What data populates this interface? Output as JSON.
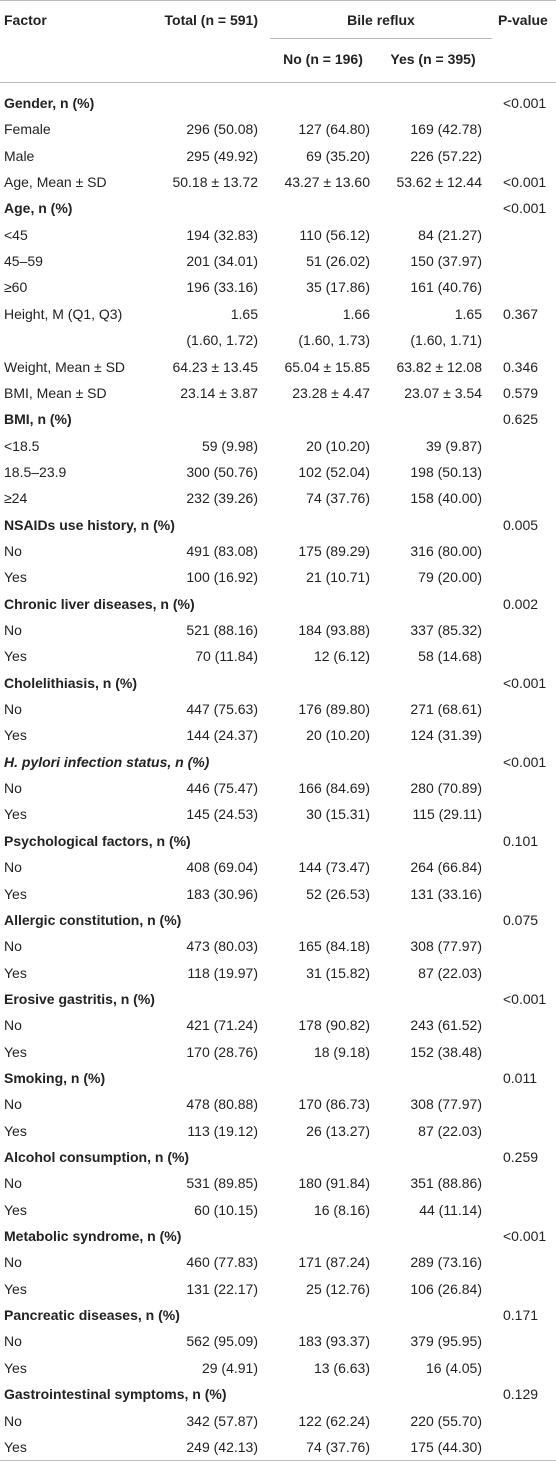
{
  "header": {
    "factor": "Factor",
    "total": "Total (n = 591)",
    "bile_reflux": "Bile reflux",
    "no": "No (n = 196)",
    "yes": "Yes (n = 395)",
    "p_value": "P-value"
  },
  "table": {
    "rows": [
      {
        "heading": true,
        "cells": [
          "Gender, n (%)",
          null,
          null,
          null,
          "<0.001"
        ]
      },
      {
        "heading": false,
        "cells": [
          "Female",
          "296 (50.08)",
          "127 (64.80)",
          "169 (42.78)",
          null
        ]
      },
      {
        "heading": false,
        "cells": [
          "Male",
          "295 (49.92)",
          "69 (35.20)",
          "226 (57.22)",
          null
        ]
      },
      {
        "heading": false,
        "cells": [
          "Age, Mean ± SD",
          "50.18 ± 13.72",
          "43.27 ± 13.60",
          "53.62 ± 12.44",
          "<0.001"
        ]
      },
      {
        "heading": true,
        "cells": [
          "Age, n (%)",
          null,
          null,
          null,
          "<0.001"
        ]
      },
      {
        "heading": false,
        "cells": [
          "<45",
          "194 (32.83)",
          "110 (56.12)",
          "84 (21.27)",
          null
        ]
      },
      {
        "heading": false,
        "cells": [
          "45–59",
          "201 (34.01)",
          "51 (26.02)",
          "150 (37.97)",
          null
        ]
      },
      {
        "heading": false,
        "cells": [
          "≥60",
          "196 (33.16)",
          "35 (17.86)",
          "161 (40.76)",
          null
        ]
      },
      {
        "heading": false,
        "cells": [
          "Height, M (Q1, Q3)",
          "1.65",
          "1.66",
          "1.65",
          "0.367"
        ]
      },
      {
        "heading": false,
        "cells": [
          null,
          "(1.60, 1.72)",
          "(1.60, 1.73)",
          "(1.60, 1.71)",
          null
        ]
      },
      {
        "heading": false,
        "cells": [
          "Weight, Mean ± SD",
          "64.23 ± 13.45",
          "65.04 ± 15.85",
          "63.82 ± 12.08",
          "0.346"
        ]
      },
      {
        "heading": false,
        "cells": [
          "BMI, Mean ± SD",
          "23.14 ± 3.87",
          "23.28 ± 4.47",
          "23.07 ± 3.54",
          "0.579"
        ]
      },
      {
        "heading": true,
        "cells": [
          "BMI, n (%)",
          null,
          null,
          null,
          "0.625"
        ]
      },
      {
        "heading": false,
        "cells": [
          "<18.5",
          "59 (9.98)",
          "20 (10.20)",
          "39 (9.87)",
          null
        ]
      },
      {
        "heading": false,
        "cells": [
          "18.5–23.9",
          "300 (50.76)",
          "102 (52.04)",
          "198 (50.13)",
          null
        ]
      },
      {
        "heading": false,
        "cells": [
          "≥24",
          "232 (39.26)",
          "74 (37.76)",
          "158 (40.00)",
          null
        ]
      },
      {
        "heading": true,
        "cells": [
          "NSAIDs use history, n (%)",
          null,
          null,
          null,
          "0.005"
        ]
      },
      {
        "heading": false,
        "cells": [
          "No",
          "491 (83.08)",
          "175 (89.29)",
          "316 (80.00)",
          null
        ]
      },
      {
        "heading": false,
        "cells": [
          "Yes",
          "100 (16.92)",
          "21 (10.71)",
          "79 (20.00)",
          null
        ]
      },
      {
        "heading": true,
        "cells": [
          "Chronic liver diseases, n (%)",
          null,
          null,
          null,
          "0.002"
        ]
      },
      {
        "heading": false,
        "cells": [
          "No",
          "521 (88.16)",
          "184 (93.88)",
          "337 (85.32)",
          null
        ]
      },
      {
        "heading": false,
        "cells": [
          "Yes",
          "70 (11.84)",
          "12 (6.12)",
          "58 (14.68)",
          null
        ]
      },
      {
        "heading": true,
        "cells": [
          "Cholelithiasis, n (%)",
          null,
          null,
          null,
          "<0.001"
        ]
      },
      {
        "heading": false,
        "cells": [
          "No",
          "447 (75.63)",
          "176 (89.80)",
          "271 (68.61)",
          null
        ]
      },
      {
        "heading": false,
        "cells": [
          "Yes",
          "144 (24.37)",
          "20 (10.20)",
          "124 (31.39)",
          null
        ]
      },
      {
        "heading": true,
        "cells": [
          "H. pylori infection status, n (%)",
          null,
          null,
          null,
          "<0.001"
        ]
      },
      {
        "heading": false,
        "cells": [
          "No",
          "446 (75.47)",
          "166 (84.69)",
          "280 (70.89)",
          null
        ]
      },
      {
        "heading": false,
        "cells": [
          "Yes",
          "145 (24.53)",
          "30 (15.31)",
          "115 (29.11)",
          null
        ]
      },
      {
        "heading": true,
        "cells": [
          "Psychological factors, n (%)",
          null,
          null,
          null,
          "0.101"
        ]
      },
      {
        "heading": false,
        "cells": [
          "No",
          "408 (69.04)",
          "144 (73.47)",
          "264 (66.84)",
          null
        ]
      },
      {
        "heading": false,
        "cells": [
          "Yes",
          "183 (30.96)",
          "52 (26.53)",
          "131 (33.16)",
          null
        ]
      },
      {
        "heading": true,
        "cells": [
          "Allergic constitution, n (%)",
          null,
          null,
          null,
          "0.075"
        ]
      },
      {
        "heading": false,
        "cells": [
          "No",
          "473 (80.03)",
          "165 (84.18)",
          "308 (77.97)",
          null
        ]
      },
      {
        "heading": false,
        "cells": [
          "Yes",
          "118 (19.97)",
          "31 (15.82)",
          "87 (22.03)",
          null
        ]
      },
      {
        "heading": true,
        "cells": [
          "Erosive gastritis, n (%)",
          null,
          null,
          null,
          "<0.001"
        ]
      },
      {
        "heading": false,
        "cells": [
          "No",
          "421 (71.24)",
          "178 (90.82)",
          "243 (61.52)",
          null
        ]
      },
      {
        "heading": false,
        "cells": [
          "Yes",
          "170 (28.76)",
          "18 (9.18)",
          "152 (38.48)",
          null
        ]
      },
      {
        "heading": true,
        "cells": [
          "Smoking, n (%)",
          null,
          null,
          null,
          "0.011"
        ]
      },
      {
        "heading": false,
        "cells": [
          "No",
          "478 (80.88)",
          "170 (86.73)",
          "308 (77.97)",
          null
        ]
      },
      {
        "heading": false,
        "cells": [
          "Yes",
          "113 (19.12)",
          "26 (13.27)",
          "87 (22.03)",
          null
        ]
      },
      {
        "heading": true,
        "cells": [
          "Alcohol consumption, n (%)",
          null,
          null,
          null,
          "0.259"
        ]
      },
      {
        "heading": false,
        "cells": [
          "No",
          "531 (89.85)",
          "180 (91.84)",
          "351 (88.86)",
          null
        ]
      },
      {
        "heading": false,
        "cells": [
          "Yes",
          "60 (10.15)",
          "16 (8.16)",
          "44 (11.14)",
          null
        ]
      },
      {
        "heading": true,
        "cells": [
          "Metabolic syndrome, n (%)",
          null,
          null,
          null,
          "<0.001"
        ]
      },
      {
        "heading": false,
        "cells": [
          "No",
          "460 (77.83)",
          "171 (87.24)",
          "289 (73.16)",
          null
        ]
      },
      {
        "heading": false,
        "cells": [
          "Yes",
          "131 (22.17)",
          "25 (12.76)",
          "106 (26.84)",
          null
        ]
      },
      {
        "heading": true,
        "cells": [
          "Pancreatic diseases, n (%)",
          null,
          null,
          null,
          "0.171"
        ]
      },
      {
        "heading": false,
        "cells": [
          "No",
          "562 (95.09)",
          "183 (93.37)",
          "379 (95.95)",
          null
        ]
      },
      {
        "heading": false,
        "cells": [
          "Yes",
          "29 (4.91)",
          "13 (6.63)",
          "16 (4.05)",
          null
        ]
      },
      {
        "heading": true,
        "cells": [
          "Gastrointestinal symptoms, n (%)",
          null,
          null,
          null,
          "0.129"
        ]
      },
      {
        "heading": false,
        "cells": [
          "No",
          "342 (57.87)",
          "122 (62.24)",
          "220 (55.70)",
          null
        ]
      },
      {
        "heading": false,
        "cells": [
          "Yes",
          "249 (42.13)",
          "74 (37.76)",
          "175 (44.30)",
          null
        ]
      }
    ]
  }
}
